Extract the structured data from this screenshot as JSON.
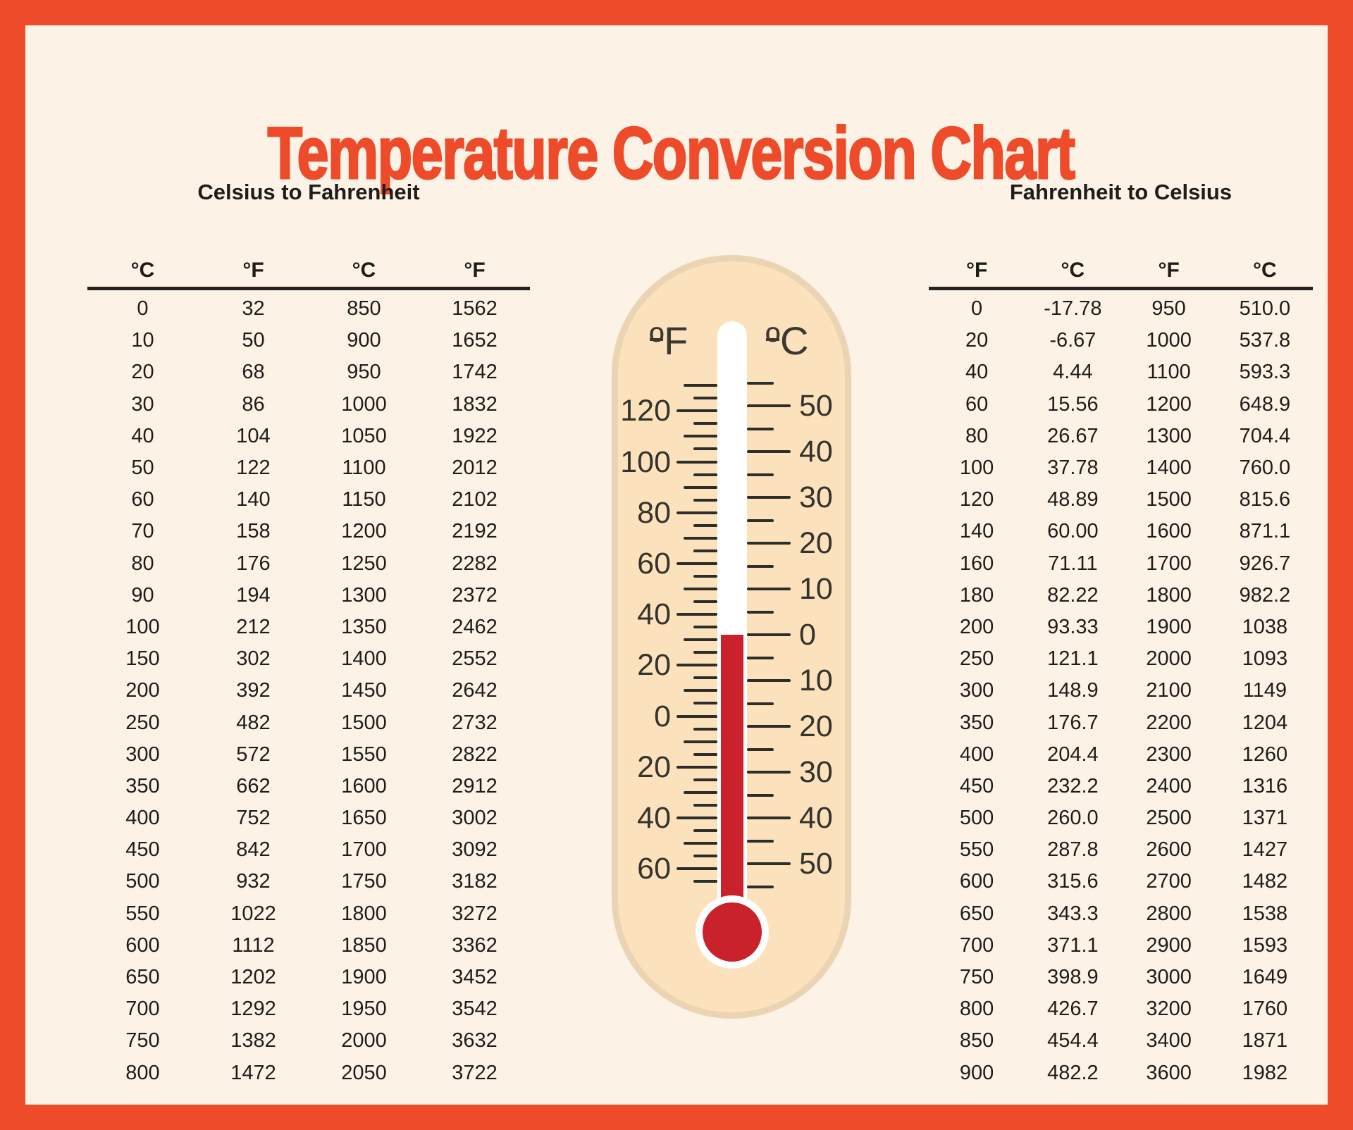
{
  "title": "Temperature Conversion Chart",
  "colors": {
    "frame_red": "#EE4B2B",
    "cream_background": "#FCF2E6",
    "capsule_fill": "#FBE2BC",
    "capsule_border": "#EAD4B3",
    "mercury_red": "#C9222A",
    "ink": "#23221F"
  },
  "chart_data": [
    {
      "type": "table",
      "title": "Celsius to Fahrenheit",
      "columns": [
        "°C",
        "°F",
        "°C",
        "°F"
      ],
      "rows": [
        [
          "0",
          "32",
          "850",
          "1562"
        ],
        [
          "10",
          "50",
          "900",
          "1652"
        ],
        [
          "20",
          "68",
          "950",
          "1742"
        ],
        [
          "30",
          "86",
          "1000",
          "1832"
        ],
        [
          "40",
          "104",
          "1050",
          "1922"
        ],
        [
          "50",
          "122",
          "1100",
          "2012"
        ],
        [
          "60",
          "140",
          "1150",
          "2102"
        ],
        [
          "70",
          "158",
          "1200",
          "2192"
        ],
        [
          "80",
          "176",
          "1250",
          "2282"
        ],
        [
          "90",
          "194",
          "1300",
          "2372"
        ],
        [
          "100",
          "212",
          "1350",
          "2462"
        ],
        [
          "150",
          "302",
          "1400",
          "2552"
        ],
        [
          "200",
          "392",
          "1450",
          "2642"
        ],
        [
          "250",
          "482",
          "1500",
          "2732"
        ],
        [
          "300",
          "572",
          "1550",
          "2822"
        ],
        [
          "350",
          "662",
          "1600",
          "2912"
        ],
        [
          "400",
          "752",
          "1650",
          "3002"
        ],
        [
          "450",
          "842",
          "1700",
          "3092"
        ],
        [
          "500",
          "932",
          "1750",
          "3182"
        ],
        [
          "550",
          "1022",
          "1800",
          "3272"
        ],
        [
          "600",
          "1112",
          "1850",
          "3362"
        ],
        [
          "650",
          "1202",
          "1900",
          "3452"
        ],
        [
          "700",
          "1292",
          "1950",
          "3542"
        ],
        [
          "750",
          "1382",
          "2000",
          "3632"
        ],
        [
          "800",
          "1472",
          "2050",
          "3722"
        ]
      ]
    },
    {
      "type": "table",
      "title": "Fahrenheit to Celsius",
      "columns": [
        "°F",
        "°C",
        "°F",
        "°C"
      ],
      "rows": [
        [
          "0",
          "-17.78",
          "950",
          "510.0"
        ],
        [
          "20",
          "-6.67",
          "1000",
          "537.8"
        ],
        [
          "40",
          "4.44",
          "1100",
          "593.3"
        ],
        [
          "60",
          "15.56",
          "1200",
          "648.9"
        ],
        [
          "80",
          "26.67",
          "1300",
          "704.4"
        ],
        [
          "100",
          "37.78",
          "1400",
          "760.0"
        ],
        [
          "120",
          "48.89",
          "1500",
          "815.6"
        ],
        [
          "140",
          "60.00",
          "1600",
          "871.1"
        ],
        [
          "160",
          "71.11",
          "1700",
          "926.7"
        ],
        [
          "180",
          "82.22",
          "1800",
          "982.2"
        ],
        [
          "200",
          "93.33",
          "1900",
          "1038"
        ],
        [
          "250",
          "121.1",
          "2000",
          "1093"
        ],
        [
          "300",
          "148.9",
          "2100",
          "1149"
        ],
        [
          "350",
          "176.7",
          "2200",
          "1204"
        ],
        [
          "400",
          "204.4",
          "2300",
          "1260"
        ],
        [
          "450",
          "232.2",
          "2400",
          "1316"
        ],
        [
          "500",
          "260.0",
          "2500",
          "1371"
        ],
        [
          "550",
          "287.8",
          "2600",
          "1427"
        ],
        [
          "600",
          "315.6",
          "2700",
          "1482"
        ],
        [
          "650",
          "343.3",
          "2800",
          "1538"
        ],
        [
          "700",
          "371.1",
          "2900",
          "1593"
        ],
        [
          "750",
          "398.9",
          "3000",
          "1649"
        ],
        [
          "800",
          "426.7",
          "3200",
          "1760"
        ],
        [
          "850",
          "454.4",
          "3400",
          "1871"
        ],
        [
          "900",
          "482.2",
          "3600",
          "1982"
        ]
      ]
    }
  ],
  "thermometer": {
    "unit_left": "ºF",
    "unit_right": "ºC",
    "f_scale": {
      "max": 130,
      "min": -65,
      "step": 5,
      "label_step": 20,
      "labels": [
        "120",
        "100",
        "80",
        "60",
        "40",
        "20",
        "0",
        "20",
        "40",
        "60"
      ]
    },
    "c_scale": {
      "max": 55,
      "min": -55,
      "step": 5,
      "label_step": 10,
      "labels": [
        "50",
        "40",
        "30",
        "20",
        "10",
        "0",
        "10",
        "20",
        "30",
        "40",
        "50"
      ]
    },
    "mercury_level_c": 0
  }
}
